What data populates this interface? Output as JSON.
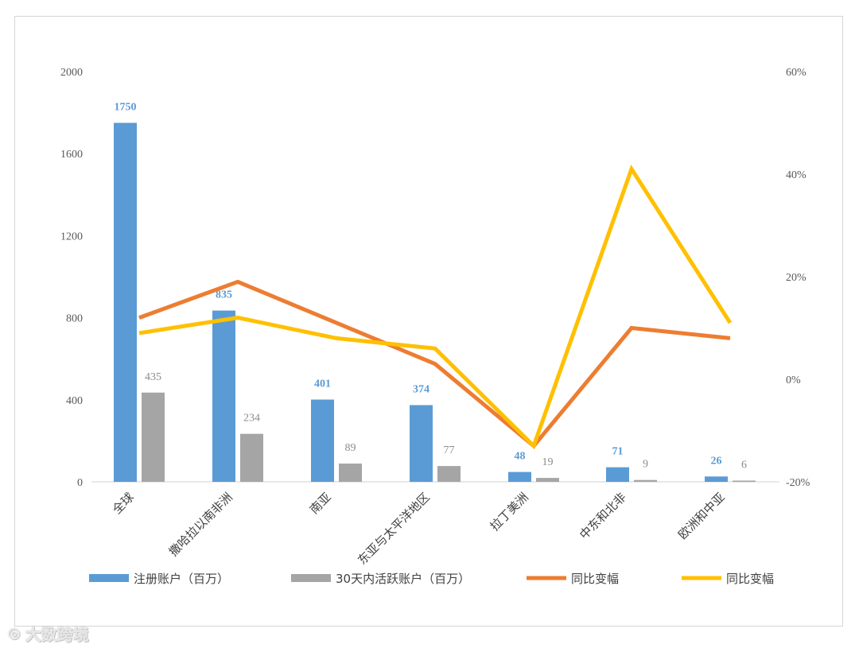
{
  "chart_data": {
    "type": "bar",
    "categories": [
      "全球",
      "撒哈拉以南非洲",
      "南亚",
      "东亚与太平洋地区",
      "拉丁美洲",
      "中东和北非",
      "欧洲和中亚"
    ],
    "series": [
      {
        "name": "注册账户（百万）",
        "kind": "bar",
        "axis": "left",
        "color": "#5b9bd5",
        "label_color": "#5b9bd5",
        "values": [
          1750,
          835,
          401,
          374,
          48,
          71,
          26
        ]
      },
      {
        "name": "30天内活跃账户（百万）",
        "kind": "bar",
        "axis": "left",
        "color": "#a5a5a5",
        "label_color": "#8c8c8c",
        "values": [
          435,
          234,
          89,
          77,
          19,
          9,
          6
        ]
      },
      {
        "name": "同比变幅",
        "kind": "line",
        "axis": "right",
        "color": "#ed7d31",
        "values": [
          12,
          19,
          11,
          3,
          -13,
          10,
          8
        ]
      },
      {
        "name": "同比变幅",
        "kind": "line",
        "axis": "right",
        "color": "#ffc000",
        "values": [
          9,
          12,
          8,
          6,
          -13,
          41,
          11
        ]
      }
    ],
    "left_axis": {
      "ylim": [
        0,
        2000
      ],
      "ticks": [
        "0",
        "400",
        "800",
        "1200",
        "1600",
        "2000"
      ],
      "tick_values": [
        0,
        400,
        800,
        1200,
        1600,
        2000
      ]
    },
    "right_axis": {
      "ylim": [
        -20,
        60
      ],
      "ticks": [
        "-20%",
        "0%",
        "20%",
        "40%",
        "60%"
      ],
      "tick_values": [
        -20,
        0,
        20,
        40,
        60
      ]
    },
    "legend_position": "bottom",
    "grid": false
  },
  "watermark": {
    "text": "大数跨境",
    "icon": "weibo-icon"
  }
}
